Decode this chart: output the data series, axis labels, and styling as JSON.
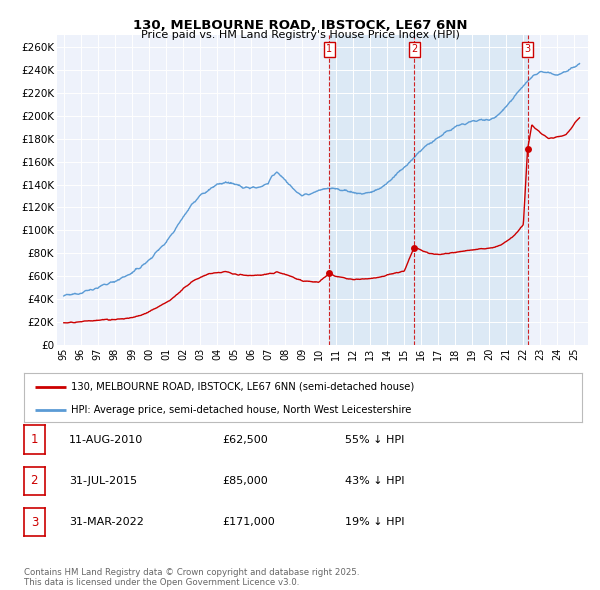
{
  "title": "130, MELBOURNE ROAD, IBSTOCK, LE67 6NN",
  "subtitle": "Price paid vs. HM Land Registry's House Price Index (HPI)",
  "sale_color": "#cc0000",
  "hpi_color": "#5b9bd5",
  "shade_color": "#dce9f5",
  "background_color": "#eef2fb",
  "sale_legend": "130, MELBOURNE ROAD, IBSTOCK, LE67 6NN (semi-detached house)",
  "hpi_legend": "HPI: Average price, semi-detached house, North West Leicestershire",
  "transactions": [
    {
      "num": 1,
      "date": 2010.61,
      "price": 62500,
      "label": "11-AUG-2010",
      "pct": "55%"
    },
    {
      "num": 2,
      "date": 2015.58,
      "price": 85000,
      "label": "31-JUL-2015",
      "pct": "43%"
    },
    {
      "num": 3,
      "date": 2022.25,
      "price": 171000,
      "label": "31-MAR-2022",
      "pct": "19%"
    }
  ],
  "hpi_anchors": [
    [
      1995.0,
      43000
    ],
    [
      1995.5,
      44000
    ],
    [
      1996.0,
      46000
    ],
    [
      1996.5,
      48000
    ],
    [
      1997.0,
      50000
    ],
    [
      1997.5,
      53000
    ],
    [
      1998.0,
      56000
    ],
    [
      1998.5,
      59000
    ],
    [
      1999.0,
      63000
    ],
    [
      1999.5,
      68000
    ],
    [
      2000.0,
      74000
    ],
    [
      2000.5,
      82000
    ],
    [
      2001.0,
      90000
    ],
    [
      2001.5,
      100000
    ],
    [
      2002.0,
      112000
    ],
    [
      2002.5,
      122000
    ],
    [
      2003.0,
      130000
    ],
    [
      2003.5,
      135000
    ],
    [
      2004.0,
      140000
    ],
    [
      2004.5,
      142000
    ],
    [
      2005.0,
      140000
    ],
    [
      2005.5,
      138000
    ],
    [
      2006.0,
      137000
    ],
    [
      2006.5,
      138000
    ],
    [
      2007.0,
      141000
    ],
    [
      2007.25,
      148000
    ],
    [
      2007.5,
      150000
    ],
    [
      2007.75,
      148000
    ],
    [
      2008.0,
      144000
    ],
    [
      2008.5,
      136000
    ],
    [
      2009.0,
      130000
    ],
    [
      2009.5,
      132000
    ],
    [
      2010.0,
      135000
    ],
    [
      2010.5,
      137000
    ],
    [
      2011.0,
      136000
    ],
    [
      2011.5,
      135000
    ],
    [
      2012.0,
      133000
    ],
    [
      2012.5,
      132000
    ],
    [
      2013.0,
      133000
    ],
    [
      2013.5,
      136000
    ],
    [
      2014.0,
      141000
    ],
    [
      2014.5,
      148000
    ],
    [
      2015.0,
      155000
    ],
    [
      2015.5,
      162000
    ],
    [
      2016.0,
      170000
    ],
    [
      2016.5,
      176000
    ],
    [
      2017.0,
      181000
    ],
    [
      2017.5,
      186000
    ],
    [
      2018.0,
      190000
    ],
    [
      2018.5,
      193000
    ],
    [
      2019.0,
      195000
    ],
    [
      2019.5,
      197000
    ],
    [
      2020.0,
      196000
    ],
    [
      2020.5,
      200000
    ],
    [
      2021.0,
      208000
    ],
    [
      2021.5,
      218000
    ],
    [
      2022.0,
      226000
    ],
    [
      2022.5,
      234000
    ],
    [
      2023.0,
      238000
    ],
    [
      2023.5,
      237000
    ],
    [
      2024.0,
      236000
    ],
    [
      2024.5,
      239000
    ],
    [
      2025.0,
      243000
    ],
    [
      2025.3,
      245000
    ]
  ],
  "sale_anchors": [
    [
      1995.0,
      19500
    ],
    [
      1995.5,
      20000
    ],
    [
      1996.0,
      20500
    ],
    [
      1996.5,
      21000
    ],
    [
      1997.0,
      21500
    ],
    [
      1997.5,
      22000
    ],
    [
      1998.0,
      22500
    ],
    [
      1998.5,
      23000
    ],
    [
      1999.0,
      24000
    ],
    [
      1999.5,
      26000
    ],
    [
      2000.0,
      29000
    ],
    [
      2000.5,
      33000
    ],
    [
      2001.0,
      37000
    ],
    [
      2001.5,
      42000
    ],
    [
      2002.0,
      49000
    ],
    [
      2002.5,
      55000
    ],
    [
      2003.0,
      59000
    ],
    [
      2003.5,
      62000
    ],
    [
      2004.0,
      63000
    ],
    [
      2004.5,
      64000
    ],
    [
      2005.0,
      62000
    ],
    [
      2005.5,
      61000
    ],
    [
      2006.0,
      60500
    ],
    [
      2006.5,
      61000
    ],
    [
      2007.0,
      62000
    ],
    [
      2007.5,
      63500
    ],
    [
      2008.0,
      62000
    ],
    [
      2008.5,
      59000
    ],
    [
      2009.0,
      56000
    ],
    [
      2009.5,
      55500
    ],
    [
      2010.0,
      55000
    ],
    [
      2010.61,
      62500
    ],
    [
      2011.0,
      60000
    ],
    [
      2011.5,
      58500
    ],
    [
      2012.0,
      57000
    ],
    [
      2012.5,
      57500
    ],
    [
      2013.0,
      58000
    ],
    [
      2013.5,
      59000
    ],
    [
      2014.0,
      61000
    ],
    [
      2014.5,
      63000
    ],
    [
      2015.0,
      64500
    ],
    [
      2015.58,
      85000
    ],
    [
      2016.0,
      83000
    ],
    [
      2016.5,
      80000
    ],
    [
      2017.0,
      79000
    ],
    [
      2017.5,
      80000
    ],
    [
      2018.0,
      81000
    ],
    [
      2018.5,
      82000
    ],
    [
      2019.0,
      83000
    ],
    [
      2019.5,
      84000
    ],
    [
      2020.0,
      84500
    ],
    [
      2020.5,
      86000
    ],
    [
      2021.0,
      90000
    ],
    [
      2021.5,
      96000
    ],
    [
      2022.0,
      105000
    ],
    [
      2022.25,
      171000
    ],
    [
      2022.5,
      192000
    ],
    [
      2023.0,
      185000
    ],
    [
      2023.5,
      180000
    ],
    [
      2024.0,
      182000
    ],
    [
      2024.5,
      183000
    ],
    [
      2025.0,
      193000
    ],
    [
      2025.3,
      198000
    ]
  ],
  "ytick_vals": [
    0,
    20000,
    40000,
    60000,
    80000,
    100000,
    120000,
    140000,
    160000,
    180000,
    200000,
    220000,
    240000,
    260000
  ],
  "ytick_labels": [
    "£0",
    "£20K",
    "£40K",
    "£60K",
    "£80K",
    "£100K",
    "£120K",
    "£140K",
    "£160K",
    "£180K",
    "£200K",
    "£220K",
    "£240K",
    "£260K"
  ],
  "ylim": [
    0,
    270000
  ],
  "xlim": [
    1994.6,
    2025.8
  ],
  "xtick_years": [
    1995,
    1996,
    1997,
    1998,
    1999,
    2000,
    2001,
    2002,
    2003,
    2004,
    2005,
    2006,
    2007,
    2008,
    2009,
    2010,
    2011,
    2012,
    2013,
    2014,
    2015,
    2016,
    2017,
    2018,
    2019,
    2020,
    2021,
    2022,
    2023,
    2024,
    2025
  ],
  "footer": "Contains HM Land Registry data © Crown copyright and database right 2025.\nThis data is licensed under the Open Government Licence v3.0."
}
